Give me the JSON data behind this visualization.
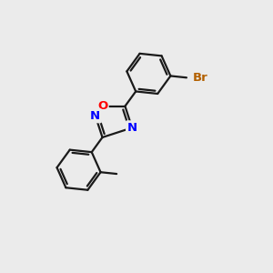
{
  "background_color": "#ebebeb",
  "bond_color": "#1a1a1a",
  "bond_width": 1.6,
  "atom_colors": {
    "O": "#ff0000",
    "N": "#0000ff",
    "Br": "#b36000",
    "C": "#1a1a1a"
  },
  "figsize": [
    3.0,
    3.0
  ],
  "dpi": 100,
  "xlim": [
    0,
    10
  ],
  "ylim": [
    0,
    10
  ]
}
